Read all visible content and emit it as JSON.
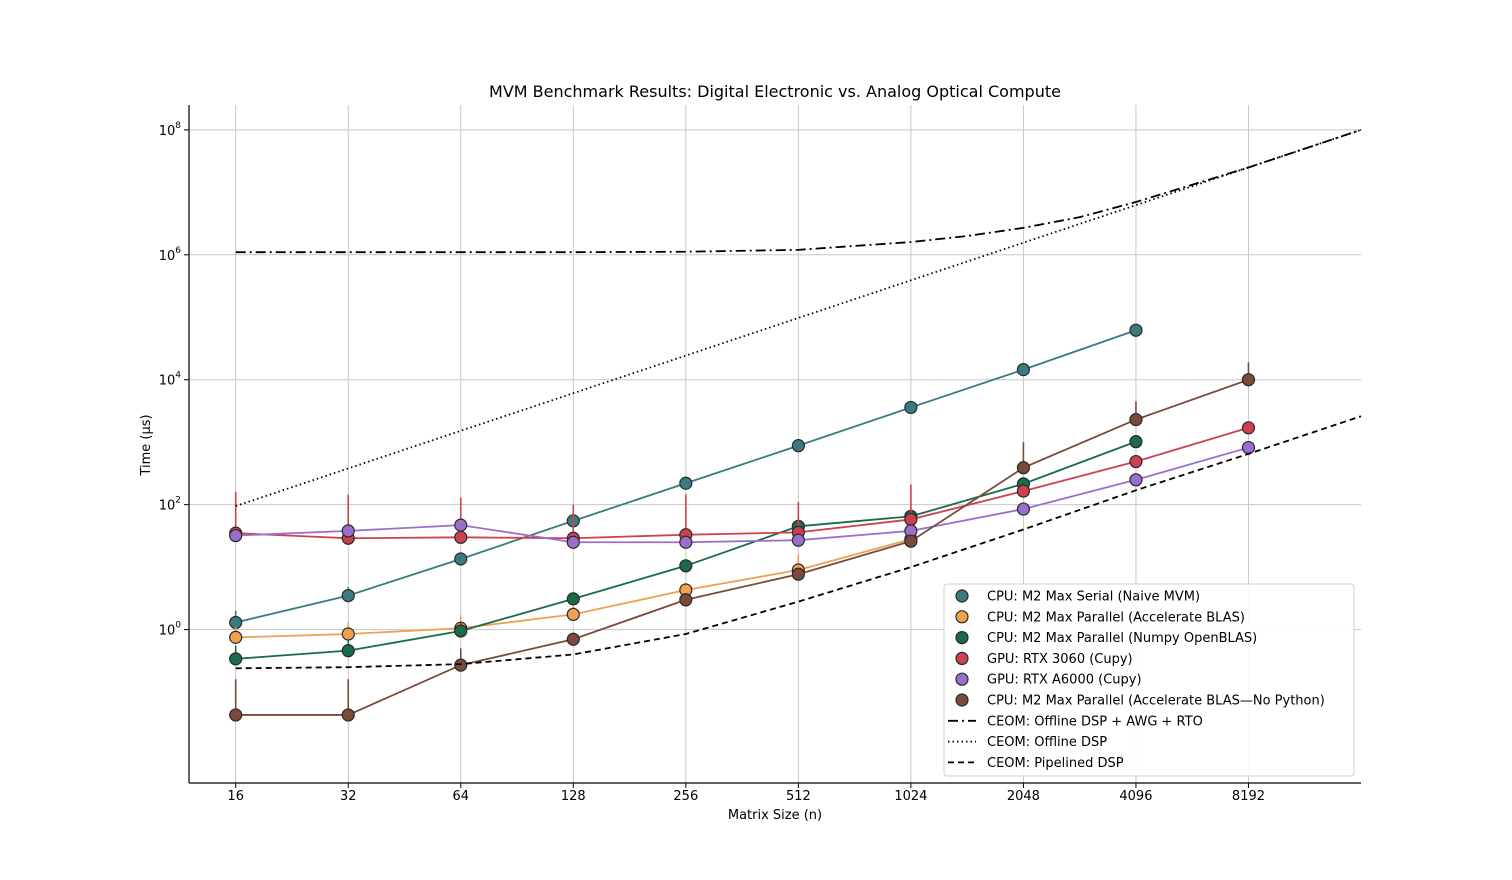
{
  "chart_data": {
    "type": "line",
    "title": "MVM Benchmark Results: Digital Electronic vs. Analog Optical Compute",
    "xlabel": "Matrix Size (n)",
    "ylabel": "Time (μs)",
    "x_scale": "log2",
    "y_scale": "log10",
    "xlim": [
      12,
      16384
    ],
    "ylim": [
      0.0035,
      250000000
    ],
    "x_ticks": [
      16,
      32,
      64,
      128,
      256,
      512,
      1024,
      2048,
      4096,
      8192
    ],
    "x_tick_labels": [
      "16",
      "32",
      "64",
      "128",
      "256",
      "512",
      "1024",
      "2048",
      "4096",
      "8192"
    ],
    "y_ticks": [
      1,
      100,
      10000,
      1000000,
      100000000
    ],
    "y_tick_labels": [
      {
        "base": "10",
        "exp": "0"
      },
      {
        "base": "10",
        "exp": "2"
      },
      {
        "base": "10",
        "exp": "4"
      },
      {
        "base": "10",
        "exp": "6"
      },
      {
        "base": "10",
        "exp": "8"
      }
    ],
    "grid": true,
    "legend_position": "lower-right",
    "series": [
      {
        "name": "CPU: M2 Max Serial (Naive MVM)",
        "color": "#3a7b80",
        "marker": true,
        "x": [
          16,
          32,
          64,
          128,
          256,
          512,
          1024,
          2048,
          4096
        ],
        "y": [
          1.3,
          3.5,
          13.5,
          55,
          220,
          880,
          3600,
          14500,
          62000
        ],
        "err_up": [
          2.0,
          4.8,
          16,
          62,
          250,
          980,
          3900,
          15500,
          65000
        ]
      },
      {
        "name": "CPU: M2 Max Parallel (Accelerate BLAS)",
        "color": "#f0a050",
        "marker": true,
        "x": [
          16,
          32,
          64,
          128,
          256,
          512,
          1024
        ],
        "y": [
          0.75,
          0.85,
          1.05,
          1.75,
          4.3,
          9.0,
          28
        ],
        "err_up": [
          1.1,
          1.3,
          1.7,
          2.4,
          5.5,
          16,
          32
        ]
      },
      {
        "name": "CPU: M2 Max Parallel (Numpy OpenBLAS)",
        "color": "#1a6b4a",
        "marker": true,
        "x": [
          16,
          32,
          64,
          128,
          256,
          512,
          1024,
          2048,
          4096
        ],
        "y": [
          0.34,
          0.46,
          0.95,
          3.1,
          10.5,
          45,
          65,
          215,
          1020
        ],
        "err_up": [
          0.55,
          0.7,
          1.3,
          3.6,
          12,
          50,
          70,
          250,
          1150
        ]
      },
      {
        "name": "GPU: RTX 3060 (Cupy)",
        "color": "#cc4050",
        "marker": true,
        "x": [
          16,
          32,
          64,
          128,
          256,
          512,
          1024,
          2048,
          4096,
          8192
        ],
        "y": [
          35,
          29,
          30,
          29,
          33,
          36,
          58,
          165,
          490,
          1700
        ],
        "err_up": [
          160,
          145,
          130,
          100,
          145,
          110,
          210,
          200,
          540,
          1850
        ]
      },
      {
        "name": "GPU: RTX A6000 (Cupy)",
        "color": "#9a6fcc",
        "marker": true,
        "x": [
          16,
          32,
          64,
          128,
          256,
          512,
          1024,
          2048,
          4096,
          8192
        ],
        "y": [
          32,
          38,
          47,
          25,
          25,
          27,
          38,
          85,
          250,
          820
        ],
        "err_up": [
          35,
          42,
          52,
          28,
          28,
          30,
          42,
          95,
          280,
          900
        ]
      },
      {
        "name": "CPU: M2 Max Parallel (Accelerate BLAS—No Python)",
        "color": "#7a4a3a",
        "marker": true,
        "x": [
          16,
          32,
          64,
          128,
          256,
          512,
          1024,
          2048,
          4096,
          8192
        ],
        "y": [
          0.043,
          0.043,
          0.27,
          0.7,
          3.0,
          7.7,
          26,
          390,
          2300,
          10000
        ],
        "err_up": [
          0.16,
          0.16,
          0.5,
          0.8,
          3.3,
          8.5,
          29,
          1000,
          4500,
          19000
        ]
      },
      {
        "name": "CEOM: Offline DSP + AWG + RTO",
        "color": "#000000",
        "marker": false,
        "dash": "10,4,2,4",
        "x": [
          16,
          32,
          64,
          128,
          256,
          512,
          1024,
          1448,
          2048,
          2896,
          4096,
          8192,
          16384
        ],
        "y": [
          1100000,
          1100000,
          1100000,
          1100000,
          1120000,
          1200000,
          1600000,
          2000000,
          2700000,
          4000000,
          7000000,
          25000000,
          100000000
        ]
      },
      {
        "name": "CEOM: Offline DSP",
        "color": "#000000",
        "marker": false,
        "dash": "1.5,3",
        "x": [
          16,
          16384
        ],
        "y": [
          95,
          100000000
        ]
      },
      {
        "name": "CEOM: Pipelined DSP",
        "color": "#000000",
        "marker": false,
        "dash": "6,4",
        "x": [
          16,
          32,
          64,
          128,
          256,
          512,
          1024,
          2048,
          4096,
          8192,
          16384
        ],
        "y": [
          0.24,
          0.25,
          0.28,
          0.4,
          0.85,
          2.8,
          10,
          40,
          170,
          650,
          2600
        ]
      }
    ]
  }
}
